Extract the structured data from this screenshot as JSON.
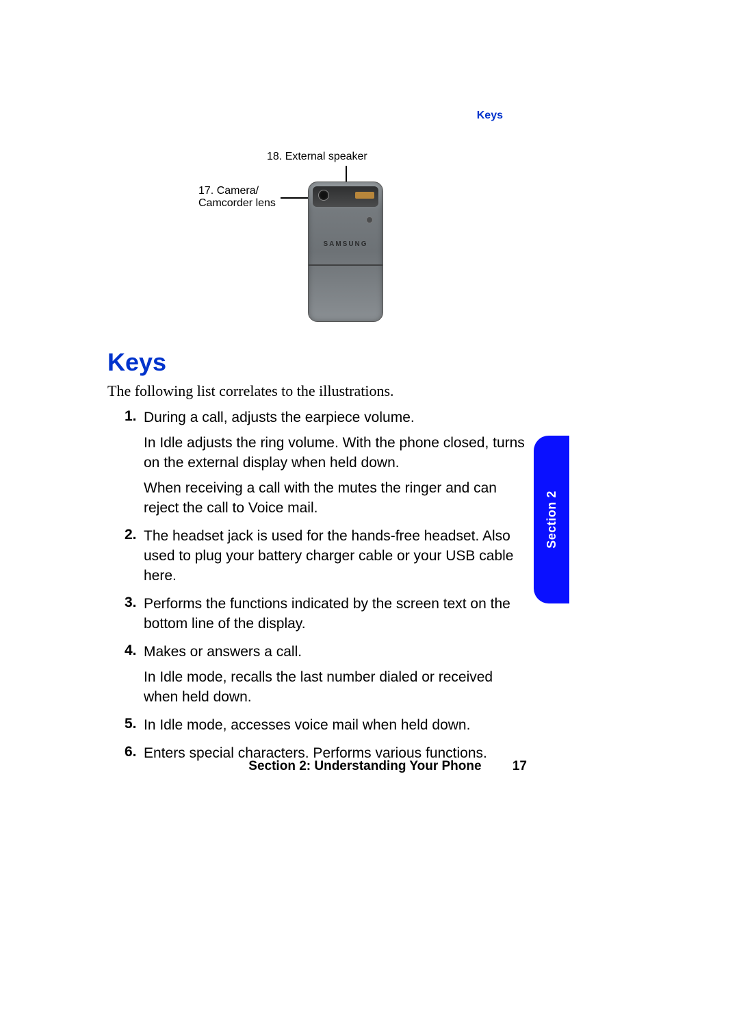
{
  "header": {
    "topic": "Keys"
  },
  "diagram": {
    "label18": "18. External speaker",
    "label17_line1": "17. Camera/",
    "label17_line2": "Camcorder lens",
    "phone_logo": "SAMSUNG",
    "colors": {
      "callout_line": "#000000",
      "phone_body_top": "#9aa0a4",
      "phone_body_bottom": "#8a8f93"
    }
  },
  "section": {
    "heading": "Keys",
    "intro": "The following list correlates to the illustrations.",
    "heading_color": "#0033cc"
  },
  "items": [
    {
      "num": "1.",
      "paras": [
        "During a call, adjusts the earpiece volume.",
        "In Idle adjusts the ring volume. With the phone closed, turns on the external display when held down.",
        "When receiving a call with the mutes the ringer and can reject the call to Voice mail."
      ]
    },
    {
      "num": "2.",
      "paras": [
        "The headset jack is used for the hands-free headset. Also used to plug your battery charger cable or your USB cable here."
      ]
    },
    {
      "num": "3.",
      "paras": [
        "Performs the functions indicated by the screen text on the bottom line of the display."
      ]
    },
    {
      "num": "4.",
      "paras": [
        "Makes or answers a call.",
        "In Idle mode, recalls the last number dialed or received when held down."
      ]
    },
    {
      "num": "5.",
      "paras": [
        "In Idle mode, accesses voice mail when held down."
      ]
    },
    {
      "num": "6.",
      "paras": [
        "Enters special characters. Performs various functions."
      ]
    }
  ],
  "tab": {
    "label": "Section 2",
    "bg_color": "#0a10ff"
  },
  "footer": {
    "text": "Section 2: Understanding Your Phone",
    "page": "17"
  }
}
